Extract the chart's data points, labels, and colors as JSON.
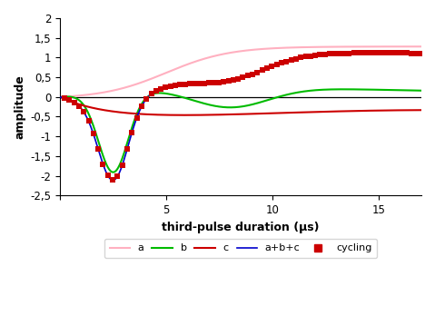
{
  "xlabel": "third-pulse duration (μs)",
  "ylabel": "amplitude",
  "xlim": [
    0,
    17
  ],
  "ylim": [
    -2.5,
    2.0
  ],
  "yticks": [
    -2.5,
    -2.0,
    -1.5,
    -1.0,
    -0.5,
    0.0,
    0.5,
    1.0,
    1.5,
    2.0
  ],
  "ytick_labels": [
    "-2,5",
    "-2",
    "-1,5",
    "-1",
    "-0,5",
    "0",
    "0,5",
    "1",
    "1,5",
    "2"
  ],
  "xticks": [
    0,
    5,
    10,
    15
  ],
  "color_a": "#ffb0c0",
  "color_b": "#00bb00",
  "color_c": "#cc0000",
  "color_abc": "#0000cc",
  "color_cyc": "#cc0000",
  "background": "#ffffff"
}
